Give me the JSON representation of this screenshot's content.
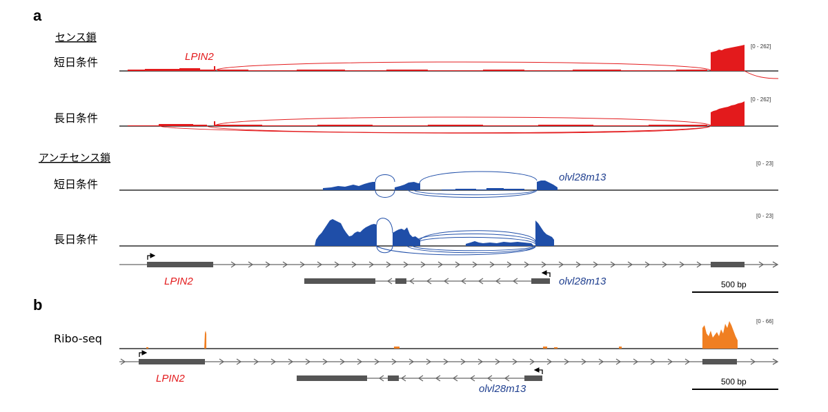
{
  "panels": {
    "a": "a",
    "b": "b"
  },
  "strands": {
    "sense": "センス鎖",
    "antisense": "アンチセンス鎖"
  },
  "conditions": {
    "short_day": "短日条件",
    "long_day": "長日条件",
    "ribo": "Ribo-seq"
  },
  "ranges": {
    "sense": "[0 - 262]",
    "antisense": "[0 - 23]",
    "ribo": "[0 - 66]"
  },
  "genes": {
    "lpin2": "LPIN2",
    "olvl": "olvl28m13"
  },
  "scale_bar": "500 bp",
  "colors": {
    "sense": "#e31a1c",
    "antisense": "#1f4ea8",
    "ribo": "#f07f22",
    "gene": "#555555"
  }
}
